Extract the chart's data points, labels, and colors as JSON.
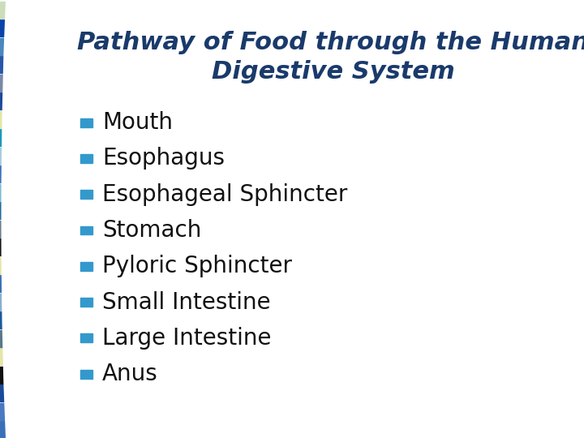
{
  "title_line1": "Pathway of Food through the Human",
  "title_line2": "Digestive System",
  "title_color": "#1a3a6b",
  "title_fontsize": 22,
  "items": [
    "Mouth",
    "Esophagus",
    "Esophageal Sphincter",
    "Stomach",
    "Pyloric Sphincter",
    "Small Intestine",
    "Large Intestine",
    "Anus"
  ],
  "item_fontsize": 20,
  "item_text_color": "#111111",
  "bullet_color": "#3399cc",
  "background_color": "#ffffff",
  "colors_col1": [
    "#3a70b8",
    "#4a7ac0",
    "#1a4a9a",
    "#111111",
    "#e5e5a8",
    "#5a7888",
    "#1a5a9a",
    "#8ab0cc",
    "#3a70b8",
    "#e5e5a8",
    "#111111",
    "#6a7a88",
    "#1a6a9a",
    "#7abcce",
    "#3a70b8",
    "#a8ccde",
    "#1a9abc",
    "#e5e5a8",
    "#1a4a9a",
    "#7888aa",
    "#2a56aa",
    "#4a88be",
    "#0a44aa",
    "#ccddbb"
  ],
  "colors_col2": [
    "#5595cc",
    "#3a90cc",
    "#2a65b5",
    "#282828",
    "#f0f0c0",
    "#7090a0",
    "#2a70b0",
    "#a0c8dc",
    "#5595cc",
    "#f0f0c0",
    "#282828",
    "#8090a0",
    "#2a80b0",
    "#90cce0",
    "#5595cc",
    "#c0dcea",
    "#2ab8d0",
    "#f0f0c0",
    "#2a65b5",
    "#9098bc",
    "#3a70c0",
    "#5599cc",
    "#1a58c0",
    "#d8eac8"
  ]
}
